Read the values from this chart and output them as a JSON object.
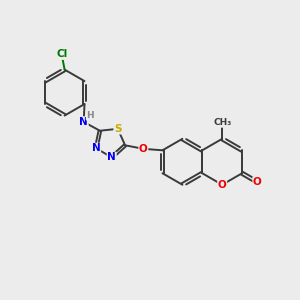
{
  "background_color": "#ececec",
  "bond_color": "#3a3a3a",
  "atom_colors": {
    "N": "#0000ee",
    "O": "#ee0000",
    "S": "#ccaa00",
    "Cl": "#007700",
    "C": "#3a3a3a",
    "H": "#888888"
  },
  "figsize": [
    3.0,
    3.0
  ],
  "dpi": 100
}
